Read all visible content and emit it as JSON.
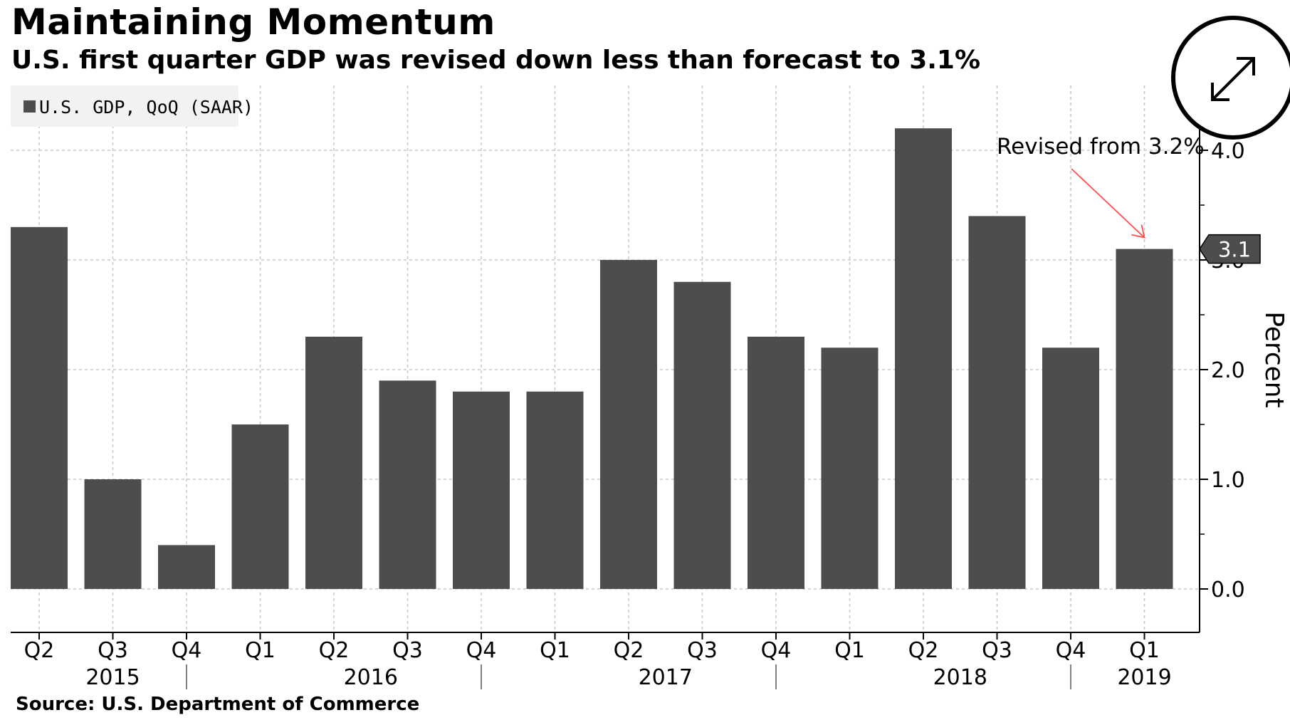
{
  "header": {
    "title": "Maintaining Momentum",
    "subtitle": "U.S. first quarter GDP was revised down less than forecast to 3.1%"
  },
  "source": "Source: U.S. Department of Commerce",
  "controls": {
    "expand_icon": "expand-arrows-icon"
  },
  "colors": {
    "bar": "#4d4d4d",
    "annotation_arrow": "#ff4d4d",
    "grid": "#c8c8c8",
    "legend_bg": "#f2f2f2"
  },
  "chart_data": {
    "type": "bar",
    "legend": {
      "label": "U.S. GDP, QoQ (SAAR)",
      "placement": "top-left"
    },
    "categories": [
      "Q2",
      "Q3",
      "Q4",
      "Q1",
      "Q2",
      "Q3",
      "Q4",
      "Q1",
      "Q2",
      "Q3",
      "Q4",
      "Q1",
      "Q2",
      "Q3",
      "Q4",
      "Q1"
    ],
    "years": [
      "2015",
      "2016",
      "2017",
      "2018",
      "2019"
    ],
    "series": [
      {
        "name": "U.S. GDP, QoQ (SAAR)",
        "values": [
          3.3,
          1.0,
          0.4,
          1.5,
          2.3,
          1.9,
          1.8,
          1.8,
          3.0,
          2.8,
          2.3,
          2.2,
          4.2,
          3.4,
          2.2,
          3.1
        ]
      }
    ],
    "ylabel": "Percent",
    "ylim": [
      -0.4,
      4.4
    ],
    "yticks": [
      "0.0",
      "1.0",
      "2.0",
      "3.0",
      "4.0"
    ],
    "y_axis_side": "right",
    "grid": true,
    "last_value_label": "3.1",
    "annotation": {
      "text": "Revised from 3.2%",
      "target_index": 15
    }
  }
}
